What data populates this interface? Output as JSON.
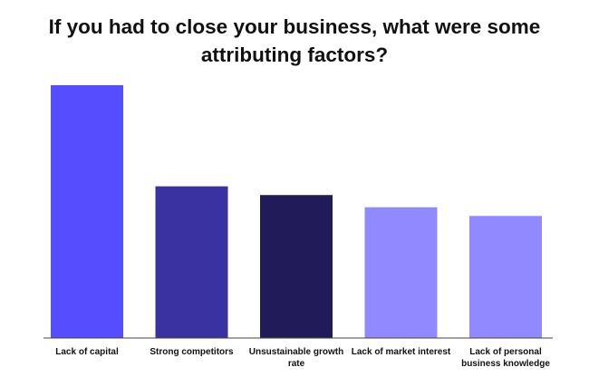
{
  "chart_data": {
    "type": "bar",
    "title_lines": [
      "If you had to close your business, what were some",
      "attributing factors?"
    ],
    "categories": [
      [
        "Lack of capital"
      ],
      [
        "Strong competitors"
      ],
      [
        "Unsustainable growth",
        "rate"
      ],
      [
        "Lack of market interest"
      ],
      [
        "Lack of personal",
        "business knowledge"
      ]
    ],
    "values": [
      29,
      17.4,
      16.4,
      15.0,
      14.0
    ],
    "colors": [
      "#554dff",
      "#3a32a0",
      "#211b5a",
      "#9089ff",
      "#9089ff"
    ],
    "ylim": [
      0,
      29
    ],
    "grid": false,
    "xlabel": "",
    "ylabel": ""
  }
}
